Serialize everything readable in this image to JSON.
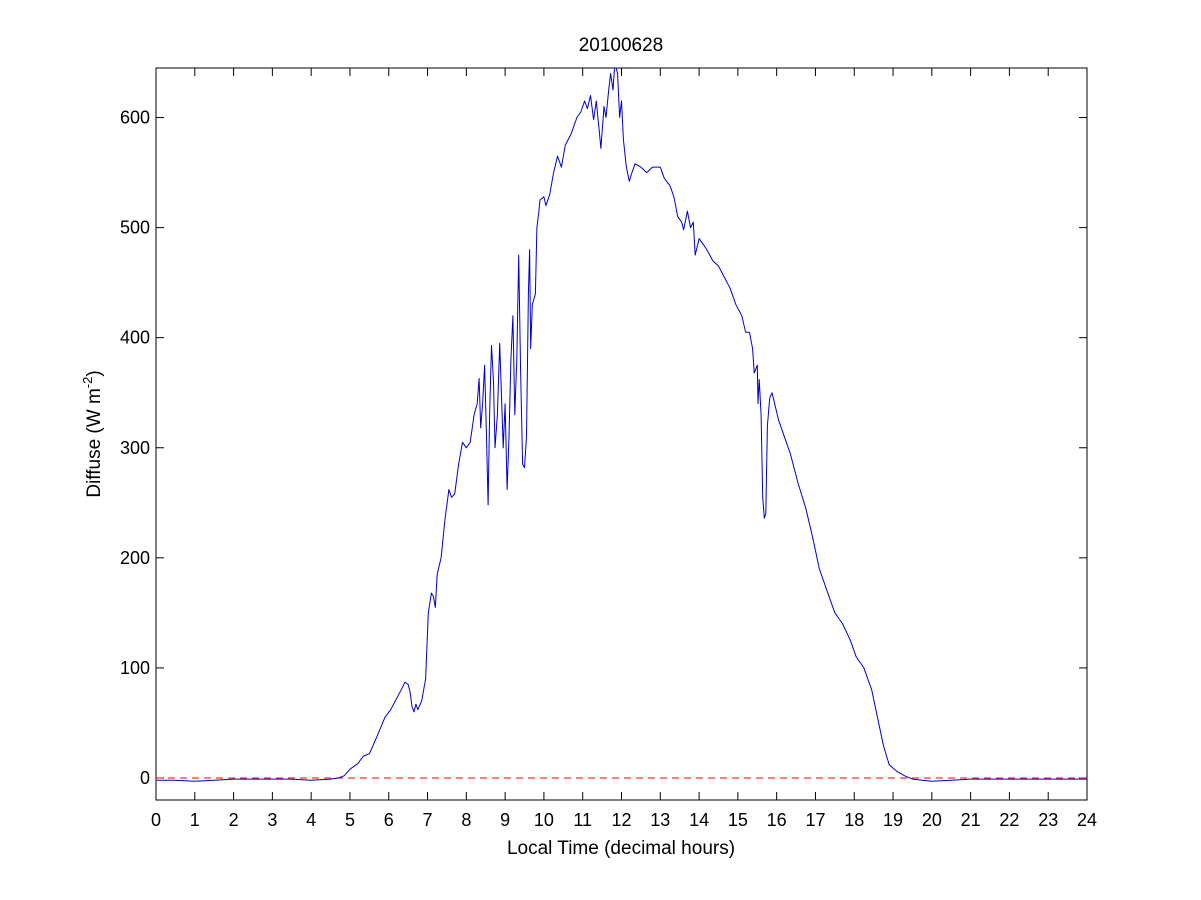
{
  "chart_data": {
    "type": "line",
    "title": "20100628",
    "xlabel": "Local Time (decimal hours)",
    "ylabel": {
      "prefix": "Diffuse (W m",
      "superscript": "-2",
      "suffix": ")"
    },
    "xlim": [
      0,
      24
    ],
    "ylim": [
      -20,
      645
    ],
    "xticks": [
      0,
      1,
      2,
      3,
      4,
      5,
      6,
      7,
      8,
      9,
      10,
      11,
      12,
      13,
      14,
      15,
      16,
      17,
      18,
      19,
      20,
      21,
      22,
      23,
      24
    ],
    "yticks": [
      0,
      100,
      200,
      300,
      400,
      500,
      600
    ],
    "grid": false,
    "legend": "none",
    "colors": {
      "series": "#0000cc",
      "reference": "#ff0000",
      "axes": "#000000"
    },
    "reference_line": {
      "y": 0,
      "style": "dashed"
    },
    "series": [
      {
        "points": [
          [
            0,
            -2
          ],
          [
            0.5,
            -2
          ],
          [
            1,
            -3
          ],
          [
            1.5,
            -2
          ],
          [
            2,
            -1
          ],
          [
            2.5,
            -1
          ],
          [
            3,
            -1
          ],
          [
            3.5,
            -1
          ],
          [
            4,
            -2
          ],
          [
            4.5,
            -1
          ],
          [
            4.7,
            0
          ],
          [
            4.85,
            2
          ],
          [
            5,
            8
          ],
          [
            5.2,
            13
          ],
          [
            5.35,
            20
          ],
          [
            5.5,
            22
          ],
          [
            5.7,
            38
          ],
          [
            5.9,
            55
          ],
          [
            6.05,
            62
          ],
          [
            6.2,
            72
          ],
          [
            6.35,
            82
          ],
          [
            6.42,
            87
          ],
          [
            6.5,
            85
          ],
          [
            6.55,
            78
          ],
          [
            6.6,
            65
          ],
          [
            6.65,
            60
          ],
          [
            6.7,
            67
          ],
          [
            6.75,
            62
          ],
          [
            6.85,
            70
          ],
          [
            6.95,
            90
          ],
          [
            7.02,
            150
          ],
          [
            7.1,
            168
          ],
          [
            7.15,
            165
          ],
          [
            7.2,
            155
          ],
          [
            7.25,
            185
          ],
          [
            7.35,
            200
          ],
          [
            7.45,
            235
          ],
          [
            7.55,
            262
          ],
          [
            7.62,
            255
          ],
          [
            7.7,
            258
          ],
          [
            7.8,
            285
          ],
          [
            7.9,
            305
          ],
          [
            8.0,
            300
          ],
          [
            8.1,
            305
          ],
          [
            8.2,
            330
          ],
          [
            8.28,
            340
          ],
          [
            8.33,
            363
          ],
          [
            8.37,
            318
          ],
          [
            8.42,
            340
          ],
          [
            8.47,
            375
          ],
          [
            8.52,
            310
          ],
          [
            8.56,
            248
          ],
          [
            8.6,
            330
          ],
          [
            8.65,
            393
          ],
          [
            8.7,
            360
          ],
          [
            8.74,
            300
          ],
          [
            8.8,
            330
          ],
          [
            8.86,
            395
          ],
          [
            8.9,
            355
          ],
          [
            8.95,
            300
          ],
          [
            9.0,
            340
          ],
          [
            9.05,
            262
          ],
          [
            9.1,
            310
          ],
          [
            9.15,
            380
          ],
          [
            9.2,
            420
          ],
          [
            9.25,
            330
          ],
          [
            9.3,
            380
          ],
          [
            9.35,
            475
          ],
          [
            9.4,
            370
          ],
          [
            9.45,
            285
          ],
          [
            9.5,
            282
          ],
          [
            9.55,
            310
          ],
          [
            9.6,
            440
          ],
          [
            9.63,
            480
          ],
          [
            9.66,
            390
          ],
          [
            9.7,
            430
          ],
          [
            9.78,
            440
          ],
          [
            9.82,
            500
          ],
          [
            9.87,
            515
          ],
          [
            9.9,
            525
          ],
          [
            10.0,
            528
          ],
          [
            10.05,
            520
          ],
          [
            10.15,
            530
          ],
          [
            10.25,
            550
          ],
          [
            10.35,
            565
          ],
          [
            10.45,
            555
          ],
          [
            10.55,
            575
          ],
          [
            10.7,
            585
          ],
          [
            10.85,
            600
          ],
          [
            10.95,
            605
          ],
          [
            11.05,
            615
          ],
          [
            11.12,
            608
          ],
          [
            11.2,
            620
          ],
          [
            11.28,
            598
          ],
          [
            11.35,
            615
          ],
          [
            11.42,
            590
          ],
          [
            11.47,
            572
          ],
          [
            11.55,
            610
          ],
          [
            11.6,
            600
          ],
          [
            11.67,
            625
          ],
          [
            11.72,
            640
          ],
          [
            11.78,
            625
          ],
          [
            11.82,
            645
          ],
          [
            11.86,
            645
          ],
          [
            11.9,
            640
          ],
          [
            11.95,
            600
          ],
          [
            12.0,
            615
          ],
          [
            12.05,
            580
          ],
          [
            12.12,
            556
          ],
          [
            12.2,
            542
          ],
          [
            12.25,
            548
          ],
          [
            12.35,
            558
          ],
          [
            12.5,
            555
          ],
          [
            12.65,
            550
          ],
          [
            12.8,
            555
          ],
          [
            13.0,
            555
          ],
          [
            13.1,
            545
          ],
          [
            13.25,
            538
          ],
          [
            13.35,
            528
          ],
          [
            13.45,
            510
          ],
          [
            13.55,
            505
          ],
          [
            13.6,
            498
          ],
          [
            13.7,
            515
          ],
          [
            13.78,
            500
          ],
          [
            13.85,
            505
          ],
          [
            13.9,
            475
          ],
          [
            14.0,
            490
          ],
          [
            14.1,
            485
          ],
          [
            14.2,
            480
          ],
          [
            14.35,
            470
          ],
          [
            14.5,
            465
          ],
          [
            14.65,
            455
          ],
          [
            14.8,
            445
          ],
          [
            14.95,
            430
          ],
          [
            15.1,
            420
          ],
          [
            15.2,
            405
          ],
          [
            15.3,
            405
          ],
          [
            15.38,
            390
          ],
          [
            15.42,
            368
          ],
          [
            15.5,
            375
          ],
          [
            15.52,
            340
          ],
          [
            15.55,
            362
          ],
          [
            15.6,
            330
          ],
          [
            15.64,
            255
          ],
          [
            15.68,
            236
          ],
          [
            15.72,
            240
          ],
          [
            15.76,
            320
          ],
          [
            15.82,
            345
          ],
          [
            15.88,
            350
          ],
          [
            15.95,
            340
          ],
          [
            16.05,
            325
          ],
          [
            16.2,
            310
          ],
          [
            16.35,
            295
          ],
          [
            16.55,
            268
          ],
          [
            16.75,
            245
          ],
          [
            16.95,
            215
          ],
          [
            17.1,
            190
          ],
          [
            17.3,
            170
          ],
          [
            17.5,
            150
          ],
          [
            17.7,
            140
          ],
          [
            17.9,
            125
          ],
          [
            18.05,
            110
          ],
          [
            18.25,
            100
          ],
          [
            18.45,
            80
          ],
          [
            18.6,
            55
          ],
          [
            18.75,
            30
          ],
          [
            18.9,
            12
          ],
          [
            19.1,
            6
          ],
          [
            19.3,
            2
          ],
          [
            19.5,
            -1
          ],
          [
            19.75,
            -2
          ],
          [
            20,
            -3
          ],
          [
            20.5,
            -2
          ],
          [
            21,
            -1
          ],
          [
            22,
            -1
          ],
          [
            23,
            -1
          ],
          [
            24,
            -1
          ]
        ]
      }
    ]
  }
}
